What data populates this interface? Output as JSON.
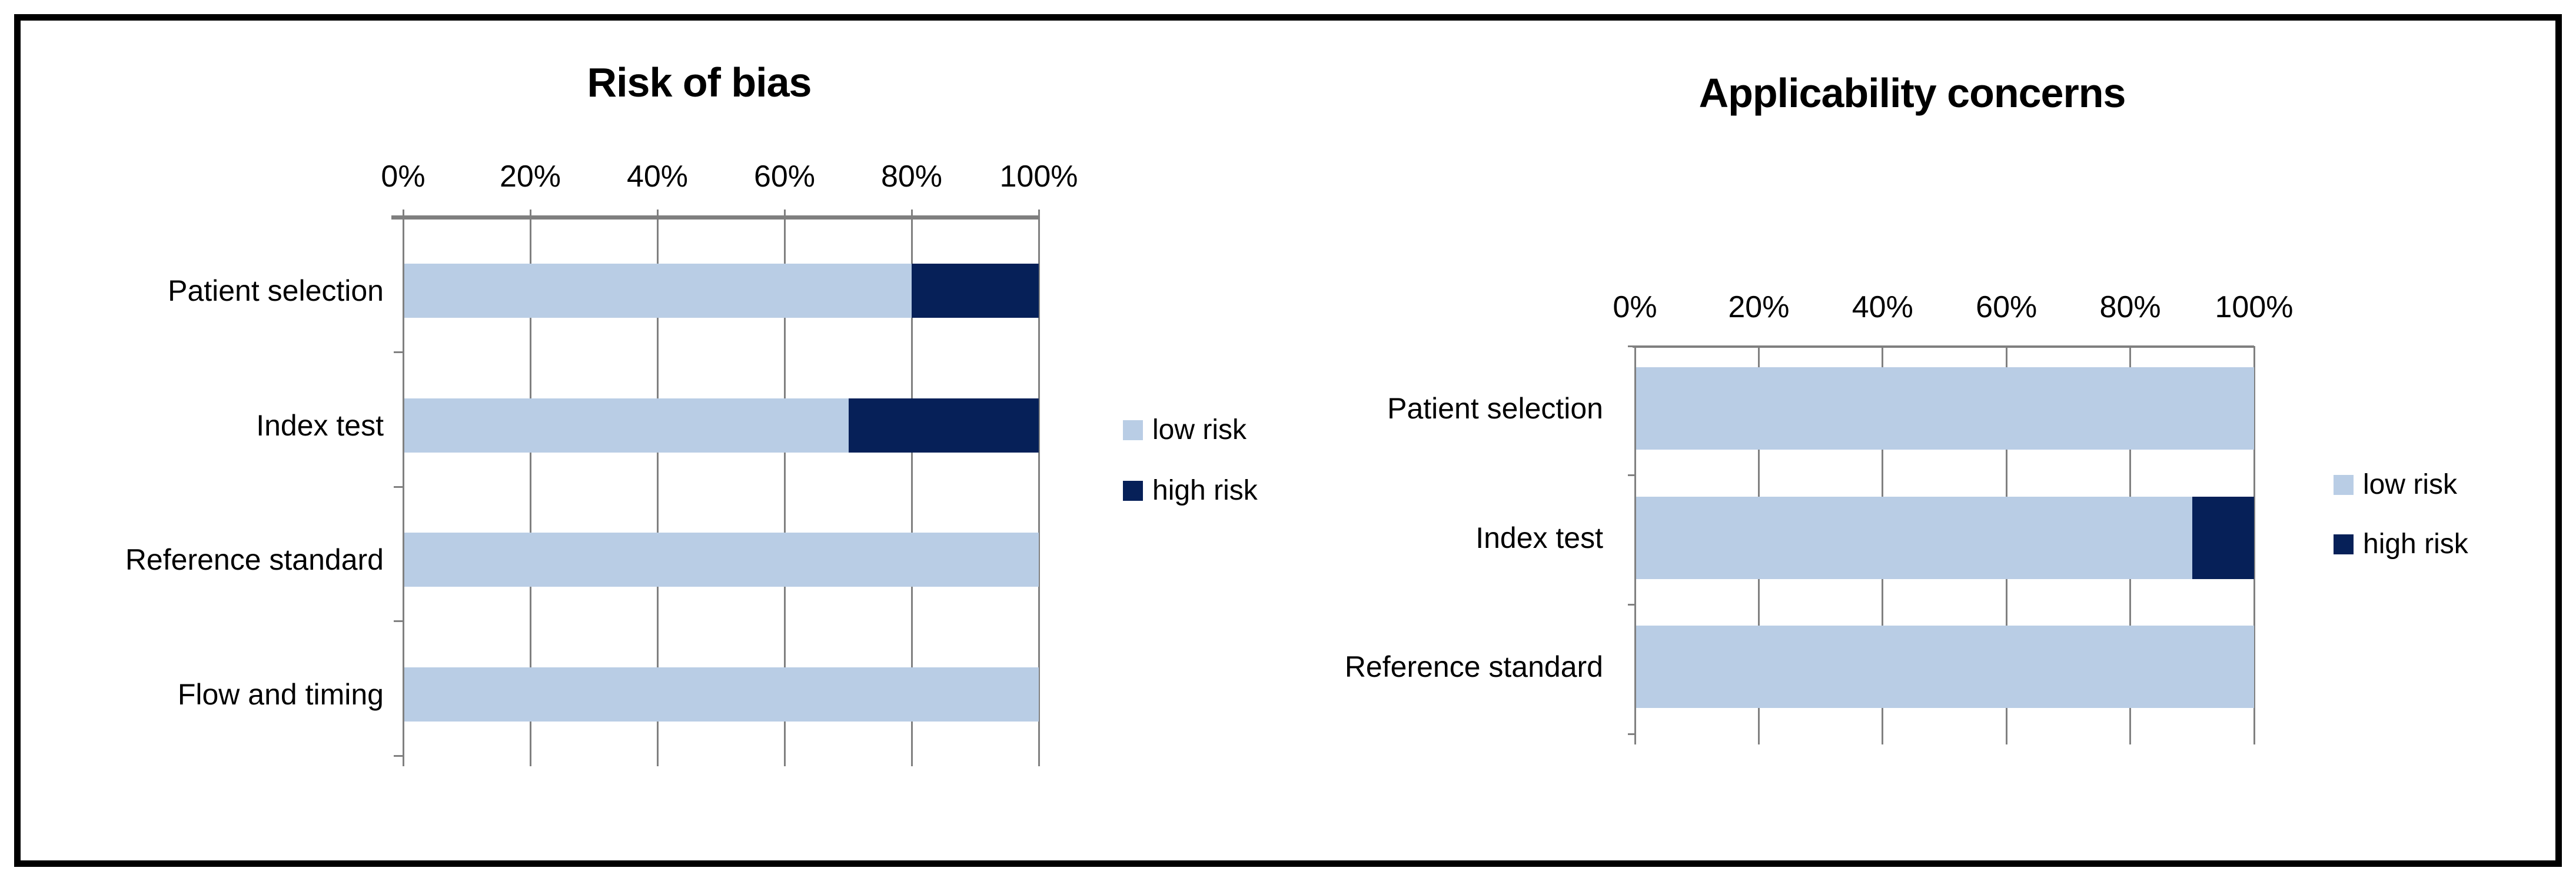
{
  "figure": {
    "background": "#ffffff",
    "border_color": "#000000"
  },
  "colors": {
    "low_risk": "#b9cde5",
    "high_risk": "#062058",
    "gridline": "#808080",
    "axis_line": "#7f7f7f",
    "text": "#000000"
  },
  "chart_data": [
    {
      "type": "bar",
      "orientation": "horizontal",
      "stacked": true,
      "title": "Risk of bias",
      "categories": [
        "Patient selection",
        "Index test",
        "Reference standard",
        "Flow and timing"
      ],
      "series": [
        {
          "name": "low risk",
          "color_key": "low_risk",
          "values": [
            80,
            70,
            100,
            100
          ]
        },
        {
          "name": "high risk",
          "color_key": "high_risk",
          "values": [
            20,
            30,
            0,
            0
          ]
        }
      ],
      "x_tick_labels": [
        "0%",
        "20%",
        "40%",
        "60%",
        "80%",
        "100%"
      ],
      "xlim": [
        0,
        100
      ],
      "unit": "%",
      "grid": true,
      "axis_position": "top",
      "legend": {
        "position": "right",
        "items": [
          "low risk",
          "high risk"
        ]
      }
    },
    {
      "type": "bar",
      "orientation": "horizontal",
      "stacked": true,
      "title": "Applicability concerns",
      "categories": [
        "Patient selection",
        "Index test",
        "Reference standard"
      ],
      "series": [
        {
          "name": "low risk",
          "color_key": "low_risk",
          "values": [
            100,
            90,
            100
          ]
        },
        {
          "name": "high risk",
          "color_key": "high_risk",
          "values": [
            0,
            10,
            0
          ]
        }
      ],
      "x_tick_labels": [
        "0%",
        "20%",
        "40%",
        "60%",
        "80%",
        "100%"
      ],
      "xlim": [
        0,
        100
      ],
      "unit": "%",
      "grid": true,
      "axis_position": "top",
      "legend": {
        "position": "right",
        "items": [
          "low risk",
          "high risk"
        ]
      }
    }
  ]
}
